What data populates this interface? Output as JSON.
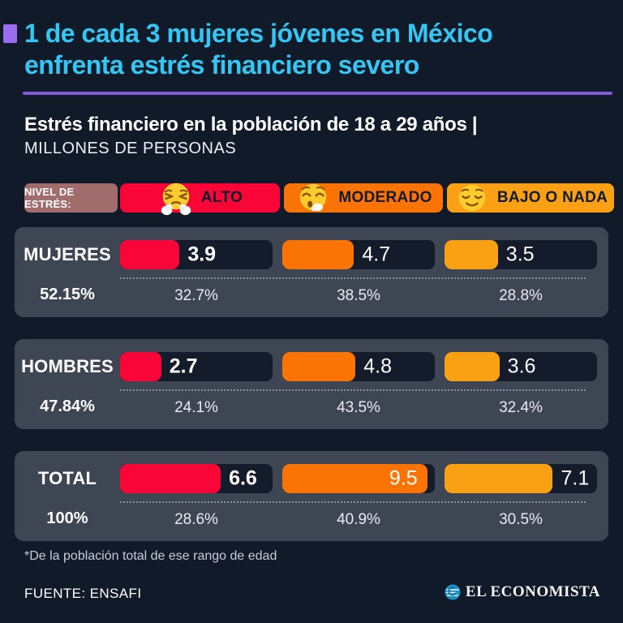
{
  "header": {
    "title_line1": "1 de cada 3 mujeres jóvenes en México",
    "title_line2": "enfrenta estrés financiero severo",
    "subtitle": "Estrés financiero en la población de 18 a 29 años |",
    "unit_label": "MILLONES DE PERSONAS",
    "title_color": "#35c7f3",
    "accent_color": "#9a6cf0"
  },
  "legend": {
    "label": "NIVEL DE ESTRÉS:",
    "label_color": "#a06c6c",
    "levels": [
      {
        "name": "ALTO",
        "color": "#fa0537",
        "emoji": "steam-face"
      },
      {
        "name": "MODERADO",
        "color": "#fa7305",
        "emoji": "exhale-face"
      },
      {
        "name": "BAJO O NADA",
        "color": "#faa014",
        "emoji": "relieved-face"
      }
    ]
  },
  "chart_data": {
    "type": "bar",
    "title": "Estrés financiero en la población de 18 a 29 años",
    "unit": "millones de personas",
    "max_scale": 10,
    "categories": [
      "ALTO",
      "MODERADO",
      "BAJO O NADA"
    ],
    "colors": [
      "#fa0537",
      "#fa7305",
      "#faa014"
    ],
    "rows": [
      {
        "label": "MUJERES",
        "share": "52.15%",
        "values": [
          "3.9",
          "4.7",
          "3.5"
        ],
        "percents": [
          "32.7%",
          "38.5%",
          "28.8%"
        ]
      },
      {
        "label": "HOMBRES",
        "share": "47.84%",
        "values": [
          "2.7",
          "4.8",
          "3.6"
        ],
        "percents": [
          "24.1%",
          "43.5%",
          "32.4%"
        ]
      },
      {
        "label": "TOTAL",
        "share": "100%",
        "values": [
          "6.6",
          "9.5",
          "7.1"
        ],
        "percents": [
          "28.6%",
          "40.9%",
          "30.5%"
        ]
      }
    ]
  },
  "footnote": "*De la población total de ese rango de edad",
  "source": "FUENTE: ENSAFI",
  "brand": "EL ECONOMISTA"
}
